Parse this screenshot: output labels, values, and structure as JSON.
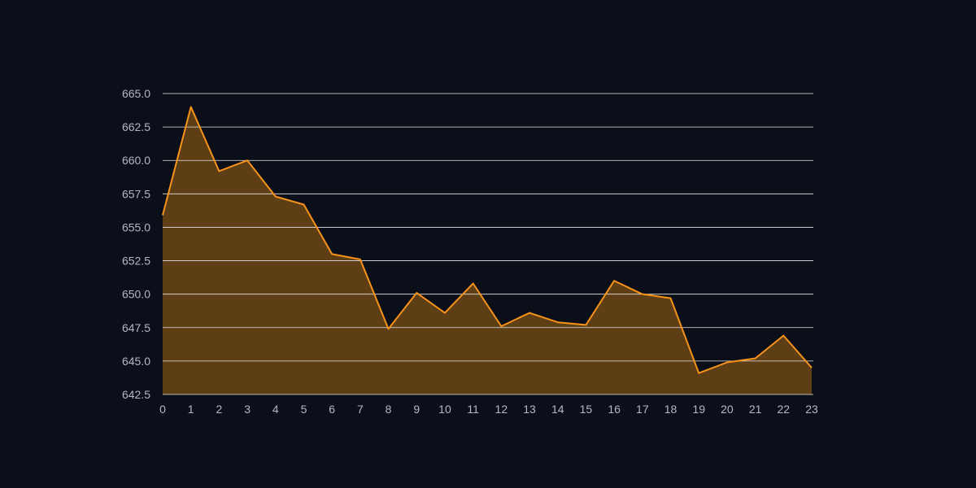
{
  "chart_data": {
    "type": "area",
    "x": [
      0,
      1,
      2,
      3,
      4,
      5,
      6,
      7,
      8,
      9,
      10,
      11,
      12,
      13,
      14,
      15,
      16,
      17,
      18,
      19,
      20,
      21,
      22,
      23
    ],
    "values": [
      655.9,
      664.0,
      659.2,
      660.0,
      657.3,
      656.7,
      653.0,
      652.6,
      647.4,
      650.1,
      648.6,
      650.8,
      647.6,
      648.6,
      647.9,
      647.7,
      651.0,
      650.0,
      649.7,
      644.1,
      644.9,
      645.2,
      646.9,
      644.5
    ],
    "color": "#f7931a",
    "fill_color": "#5e3e14",
    "xlim": [
      0,
      23
    ],
    "xticks": [
      0,
      1,
      2,
      3,
      4,
      5,
      6,
      7,
      8,
      9,
      10,
      11,
      12,
      13,
      14,
      15,
      16,
      17,
      18,
      19,
      20,
      21,
      22,
      23
    ],
    "ylim": [
      642.5,
      665
    ],
    "yticks": [
      {
        "value": 642.5,
        "label": "642.5"
      },
      {
        "value": 645,
        "label": "645.0"
      },
      {
        "value": 647.5,
        "label": "647.5"
      },
      {
        "value": 650,
        "label": "650.0"
      },
      {
        "value": 652.5,
        "label": "652.5"
      },
      {
        "value": 655,
        "label": "655.0"
      },
      {
        "value": 657.5,
        "label": "657.5"
      },
      {
        "value": 660,
        "label": "660.0"
      },
      {
        "value": 662.5,
        "label": "662.5"
      },
      {
        "value": 665,
        "label": "665.0"
      }
    ],
    "grid": true
  }
}
